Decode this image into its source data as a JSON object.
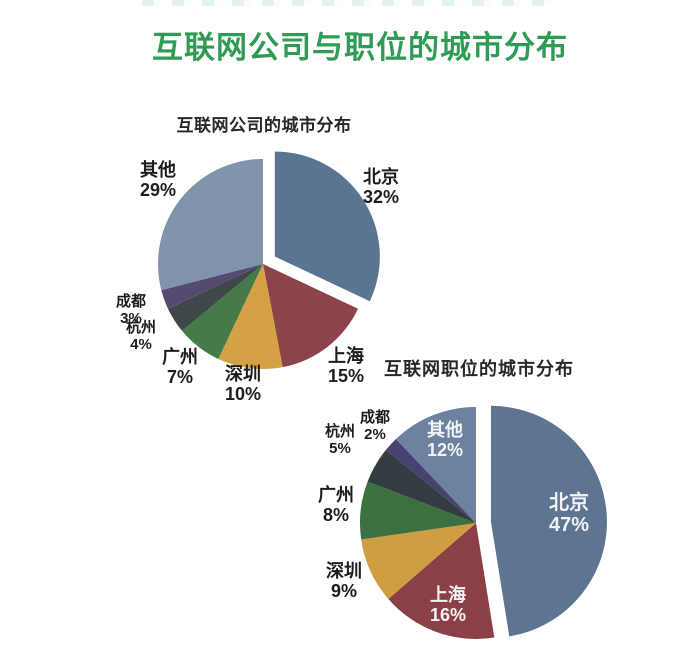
{
  "page": {
    "title": "互联网公司与职位的城市分布",
    "title_color": "#2f9b55"
  },
  "chart_data": [
    {
      "type": "pie",
      "title": "互联网公司的城市分布",
      "categories": [
        "北京",
        "上海",
        "深圳",
        "广州",
        "杭州",
        "成都",
        "其他"
      ],
      "values": [
        32,
        15,
        10,
        7,
        4,
        3,
        29
      ],
      "pct_labels": [
        "32%",
        "15%",
        "10%",
        "7%",
        "4%",
        "3%",
        "29%"
      ],
      "colors": [
        "#5b7492",
        "#8d434b",
        "#d4a244",
        "#447b48",
        "#3f474b",
        "#564a70",
        "#8093ab"
      ],
      "exploded": "北京",
      "start_angle_deg": 0,
      "clockwise": true,
      "labels_inside": [],
      "legend": "none"
    },
    {
      "type": "pie",
      "title": "互联网职位的城市分布",
      "categories": [
        "北京",
        "上海",
        "深圳",
        "广州",
        "杭州",
        "成都",
        "其他"
      ],
      "values": [
        47,
        16,
        9,
        8,
        5,
        2,
        12
      ],
      "pct_labels": [
        "47%",
        "16%",
        "9%",
        "8%",
        "5%",
        "2%",
        "12%"
      ],
      "colors": [
        "#5d7492",
        "#8b4048",
        "#cf9d42",
        "#3c7040",
        "#323c41",
        "#484270",
        "#6d81a0"
      ],
      "exploded": "北京",
      "start_angle_deg": 0,
      "clockwise": true,
      "labels_inside": [
        "北京",
        "上海",
        "其他"
      ],
      "legend": "none"
    }
  ]
}
